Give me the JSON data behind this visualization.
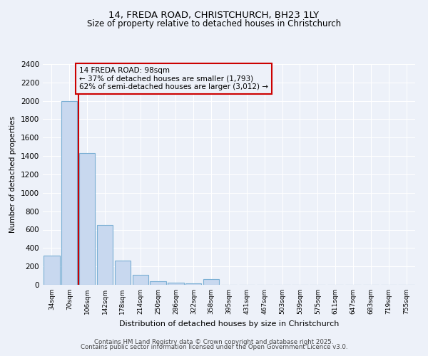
{
  "title1": "14, FREDA ROAD, CHRISTCHURCH, BH23 1LY",
  "title2": "Size of property relative to detached houses in Christchurch",
  "xlabel": "Distribution of detached houses by size in Christchurch",
  "ylabel": "Number of detached properties",
  "categories": [
    "34sqm",
    "70sqm",
    "106sqm",
    "142sqm",
    "178sqm",
    "214sqm",
    "250sqm",
    "286sqm",
    "322sqm",
    "358sqm",
    "395sqm",
    "431sqm",
    "467sqm",
    "503sqm",
    "539sqm",
    "575sqm",
    "611sqm",
    "647sqm",
    "683sqm",
    "719sqm",
    "755sqm"
  ],
  "values": [
    320,
    2000,
    1430,
    650,
    260,
    110,
    35,
    25,
    15,
    60,
    0,
    0,
    0,
    0,
    0,
    0,
    0,
    0,
    0,
    0,
    0
  ],
  "bar_color": "#c8d8ef",
  "bar_edge_color": "#7aafd4",
  "ylim": [
    0,
    2400
  ],
  "yticks": [
    0,
    200,
    400,
    600,
    800,
    1000,
    1200,
    1400,
    1600,
    1800,
    2000,
    2200,
    2400
  ],
  "vline_x": 1.5,
  "vline_color": "#cc0000",
  "annotation_text": "14 FREDA ROAD: 98sqm\n← 37% of detached houses are smaller (1,793)\n62% of semi-detached houses are larger (3,012) →",
  "annotation_box_color": "#cc0000",
  "bg_color": "#edf1f9",
  "grid_color": "#ffffff",
  "footer1": "Contains HM Land Registry data © Crown copyright and database right 2025.",
  "footer2": "Contains public sector information licensed under the Open Government Licence v3.0."
}
